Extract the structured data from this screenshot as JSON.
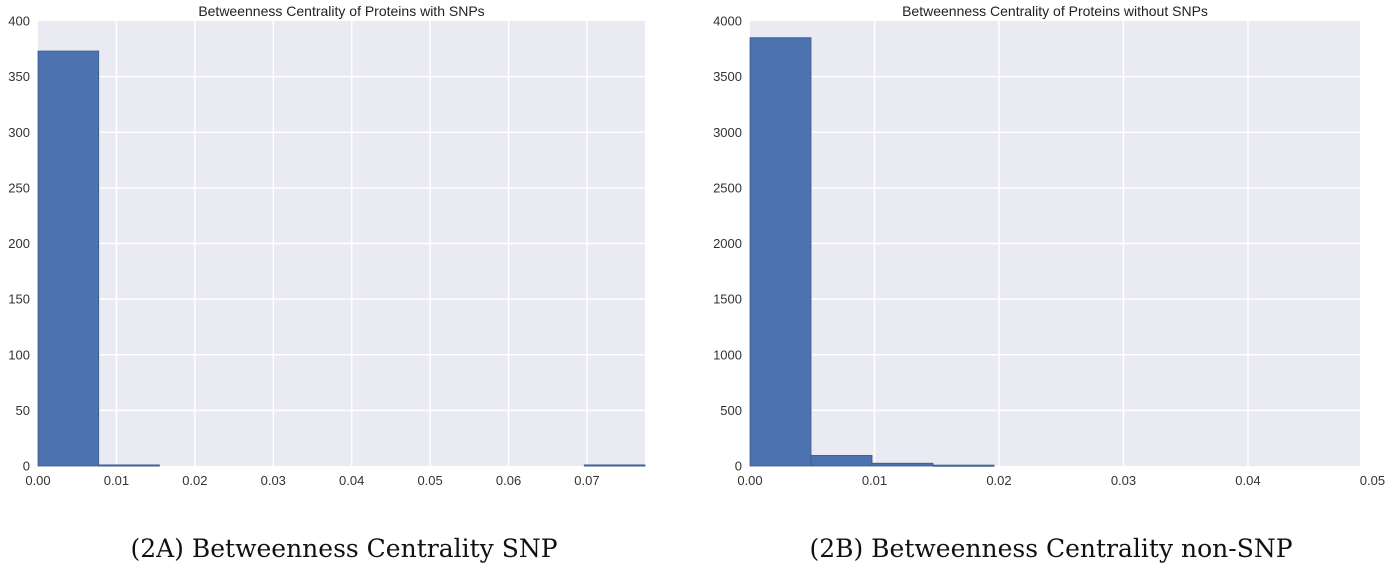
{
  "chart_data": [
    {
      "type": "bar",
      "title": "Betweenness Centrality of Proteins with SNPs",
      "caption": "(2A) Betweenness Centrality SNP",
      "xlabel": "",
      "ylabel": "",
      "xlim": [
        0.0,
        0.0774
      ],
      "ylim": [
        0,
        400
      ],
      "xticks": [
        0.0,
        0.01,
        0.02,
        0.03,
        0.04,
        0.05,
        0.06,
        0.07
      ],
      "xtick_labels": [
        "0.00",
        "0.01",
        "0.02",
        "0.03",
        "0.04",
        "0.05",
        "0.06",
        "0.07"
      ],
      "yticks": [
        0,
        50,
        100,
        150,
        200,
        250,
        300,
        350,
        400
      ],
      "ytick_labels": [
        "0",
        "50",
        "100",
        "150",
        "200",
        "250",
        "300",
        "350",
        "400"
      ],
      "grid": true,
      "bar_color": "#4c72b0",
      "plot_background": "#eaeaf2",
      "bins": [
        {
          "x0": 0.0,
          "x1": 0.00774,
          "value": 373
        },
        {
          "x0": 0.00774,
          "x1": 0.01548,
          "value": 1
        },
        {
          "x0": 0.06966,
          "x1": 0.0774,
          "value": 1
        }
      ]
    },
    {
      "type": "bar",
      "title": "Betweenness Centrality of Proteins without SNPs",
      "caption": "(2B) Betweenness Centrality non-SNP",
      "xlabel": "",
      "ylabel": "",
      "xlim": [
        0.0,
        0.049
      ],
      "ylim": [
        0,
        4000
      ],
      "xticks": [
        0.0,
        0.01,
        0.02,
        0.03,
        0.04,
        0.05
      ],
      "xtick_labels": [
        "0.00",
        "0.01",
        "0.02",
        "0.03",
        "0.04",
        "0.05"
      ],
      "yticks": [
        0,
        500,
        1000,
        1500,
        2000,
        2500,
        3000,
        3500,
        4000
      ],
      "ytick_labels": [
        "0",
        "500",
        "1000",
        "1500",
        "2000",
        "2500",
        "3000",
        "3500",
        "4000"
      ],
      "grid": true,
      "bar_color": "#4c72b0",
      "plot_background": "#eaeaf2",
      "bins": [
        {
          "x0": 0.0,
          "x1": 0.0049,
          "value": 3850
        },
        {
          "x0": 0.0049,
          "x1": 0.0098,
          "value": 95
        },
        {
          "x0": 0.0098,
          "x1": 0.0147,
          "value": 25
        },
        {
          "x0": 0.0147,
          "x1": 0.0196,
          "value": 8
        }
      ]
    }
  ]
}
